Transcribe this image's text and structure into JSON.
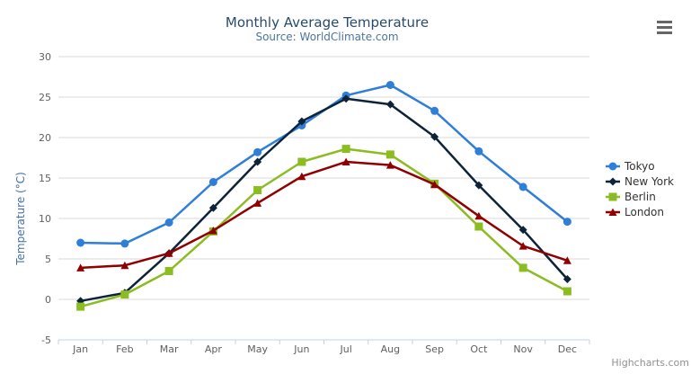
{
  "chart_data": {
    "type": "line",
    "title": "Monthly Average Temperature",
    "subtitle": "Source: WorldClimate.com",
    "xlabel": "",
    "ylabel": "Temperature (°C)",
    "categories": [
      "Jan",
      "Feb",
      "Mar",
      "Apr",
      "May",
      "Jun",
      "Jul",
      "Aug",
      "Sep",
      "Oct",
      "Nov",
      "Dec"
    ],
    "series": [
      {
        "name": "Tokyo",
        "color": "#2f7ed8",
        "marker": "circle",
        "values": [
          7.0,
          6.9,
          9.5,
          14.5,
          18.2,
          21.5,
          25.2,
          26.5,
          23.3,
          18.3,
          13.9,
          9.6
        ]
      },
      {
        "name": "New York",
        "color": "#0d233a",
        "marker": "diamond",
        "values": [
          -0.2,
          0.8,
          5.7,
          11.3,
          17.0,
          22.0,
          24.8,
          24.1,
          20.1,
          14.1,
          8.6,
          2.5
        ]
      },
      {
        "name": "Berlin",
        "color": "#8bbc21",
        "marker": "square",
        "values": [
          -0.9,
          0.6,
          3.5,
          8.4,
          13.5,
          17.0,
          18.6,
          17.9,
          14.3,
          9.0,
          3.9,
          1.0
        ]
      },
      {
        "name": "London",
        "color": "#910000",
        "marker": "triangle",
        "values": [
          3.9,
          4.2,
          5.7,
          8.5,
          11.9,
          15.2,
          17.0,
          16.6,
          14.2,
          10.3,
          6.6,
          4.8
        ]
      }
    ],
    "ylim": [
      -5,
      30
    ],
    "ytick_interval": 5,
    "grid": "horizontal-only",
    "legend_position": "right-middle"
  },
  "credits": "Highcharts.com",
  "icons": {
    "context_menu": "hamburger-icon"
  },
  "style": {
    "background": "#ffffff",
    "title_color": "#274b6d",
    "subtitle_color": "#4d759e",
    "axis_label_color": "#606060",
    "y_axis_title_color": "#4572a7",
    "grid_color": "#d8d8d8",
    "axis_line_color": "#c0d0e0",
    "legend_text_color": "#333333",
    "credits_color": "#909090",
    "menu_icon_color": "#666666"
  }
}
